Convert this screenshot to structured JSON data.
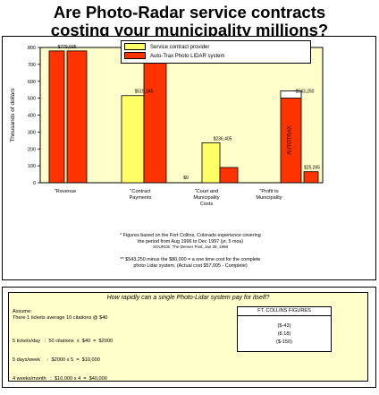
{
  "page": {
    "title_line1": "Are Photo-Radar service contracts",
    "title_line2": "costing your municipality millions?"
  },
  "chart_data": {
    "type": "bar",
    "title": "",
    "xlabel": "",
    "ylabel": "Thousands of dollars",
    "ylim": [
      0,
      800
    ],
    "yticks": [
      0,
      100,
      200,
      300,
      400,
      500,
      600,
      700,
      800
    ],
    "grid": false,
    "legend_position": "top",
    "categories": [
      "\"Revenue",
      "\"Contract Payments",
      "\"Court and Municipality Costs",
      "\"Profit to Municipality"
    ],
    "categories_display": [
      [
        "\"Revenue"
      ],
      [
        "\"Contract",
        "Payments"
      ],
      [
        "\"Court and",
        "Municipality",
        "Costs"
      ],
      [
        "\"Profit to",
        "Municipality"
      ]
    ],
    "series": [
      {
        "name": "Service contract provider",
        "color": "#ffff66",
        "values": [
          0,
          515.3,
          0,
          236.4
        ]
      },
      {
        "name": "Auto-Trax Photo LIDAR system",
        "color": "#ff3300",
        "values": [
          779.6,
          779.6,
          0,
          543.2
        ]
      }
    ],
    "labels": [
      "$779,595",
      "$515,345",
      "$236,405",
      "$0",
      "$543,250",
      "$25,265"
    ],
    "auto_trax_value": 543.25,
    "court_cost_value": 25.265,
    "tag": "AUTOTRAX",
    "notes": [
      "* Figures based on the Fort Collins, Colorado experience covering",
      "the period from Aug 1996 to Dec 1997 (yr, 5 mos)",
      "SOURCE: The Denver Post, Jan 25, 1998",
      "** $543,250 minus the $80,000 = a one time cost for the complete",
      "photo Lidar system. (Actual cost $57,005 - Complete)"
    ],
    "colors": {
      "contract": "#ffff66",
      "autotrax": "#ff3300",
      "panel_bg": "#ffffcc"
    }
  },
  "calc": {
    "question": "How rapidly can a single Photo-Lidar system pay for itself?",
    "assume_label": "Assume:",
    "assume_text": "There  1  tickets  average  10 citations  @  $40",
    "rows": [
      "5 tickets/day   :  50 citations  x  $40  =  $2000",
      "5 days/week     :  $2000 x 5  =  $10,000",
      "4 weeks/month   :  $10,000 x 4  =  $40,000"
    ],
    "box_header": "FT. COLLINS FIGURES",
    "results": [
      "($-43)",
      "(8.18)",
      "($-150)"
    ]
  }
}
